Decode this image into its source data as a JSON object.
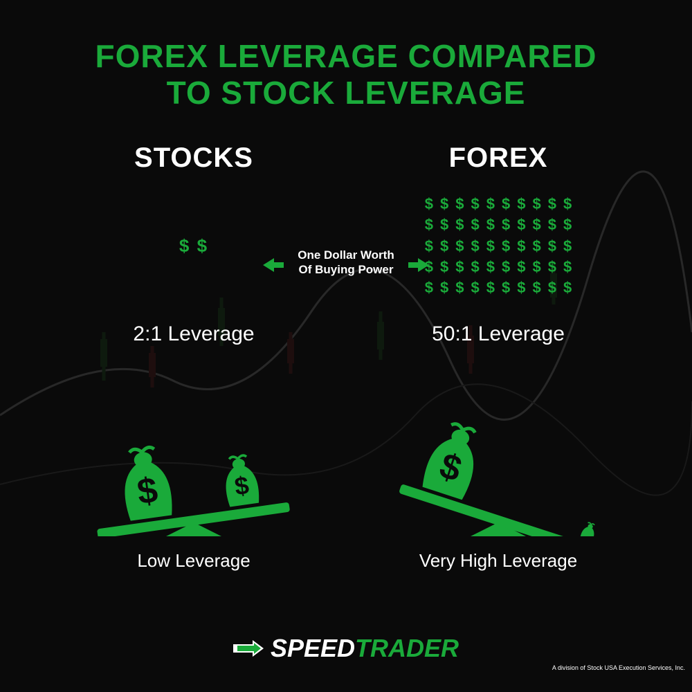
{
  "type": "infographic",
  "colors": {
    "background": "#0a0a0a",
    "accent_green": "#1aaa3a",
    "text_white": "#ffffff"
  },
  "title": {
    "line1": "FOREX LEVERAGE COMPARED",
    "line2": "TO STOCK LEVERAGE",
    "fontsize": 46,
    "color": "#1aaa3a"
  },
  "center": {
    "label_line1": "One Dollar Worth",
    "label_line2": "Of Buying Power",
    "fontsize": 17
  },
  "stocks": {
    "heading": "STOCKS",
    "dollar_count": 2,
    "leverage_ratio": "2:1 Leverage",
    "level_label": "Low Leverage",
    "scale_tilt_deg": -8
  },
  "forex": {
    "heading": "FOREX",
    "dollar_count": 50,
    "dollar_grid_cols": 10,
    "dollar_grid_rows": 5,
    "leverage_ratio": "50:1 Leverage",
    "level_label": "Very High Leverage",
    "scale_tilt_deg": 18
  },
  "footer": {
    "brand_part1": "SPEED",
    "brand_part2": "TRADER",
    "subtext": "A division of Stock USA Execution Services, Inc."
  }
}
